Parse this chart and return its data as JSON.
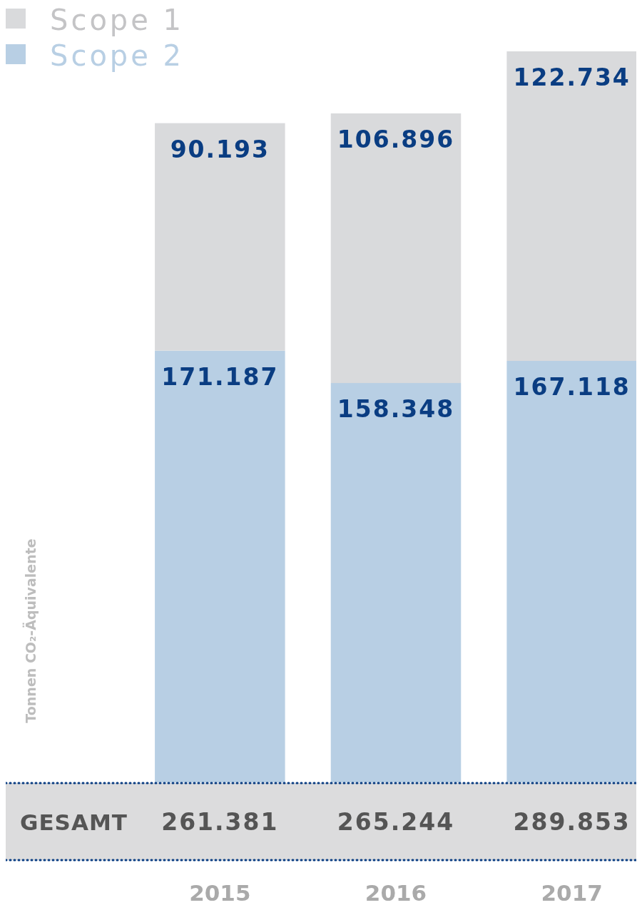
{
  "chart_data": {
    "type": "bar",
    "stacked": true,
    "categories": [
      "2015",
      "2016",
      "2017"
    ],
    "ylabel": "Tonnen CO₂-Äquivalente",
    "legend": "top left",
    "series": [
      {
        "name": "Scope 2",
        "color": "#b8cfe4",
        "values": [
          171187,
          158348,
          167118
        ],
        "value_labels": [
          "171.187",
          "158.348",
          "167.118"
        ]
      },
      {
        "name": "Scope 1",
        "color": "#d9dadc",
        "values": [
          90193,
          106896,
          122734
        ],
        "value_labels": [
          "90.193",
          "106.896",
          "122.734"
        ]
      }
    ],
    "totals": [
      "261.381",
      "265.244",
      "289.853"
    ],
    "annotations": [
      "GESAMT"
    ]
  }
}
